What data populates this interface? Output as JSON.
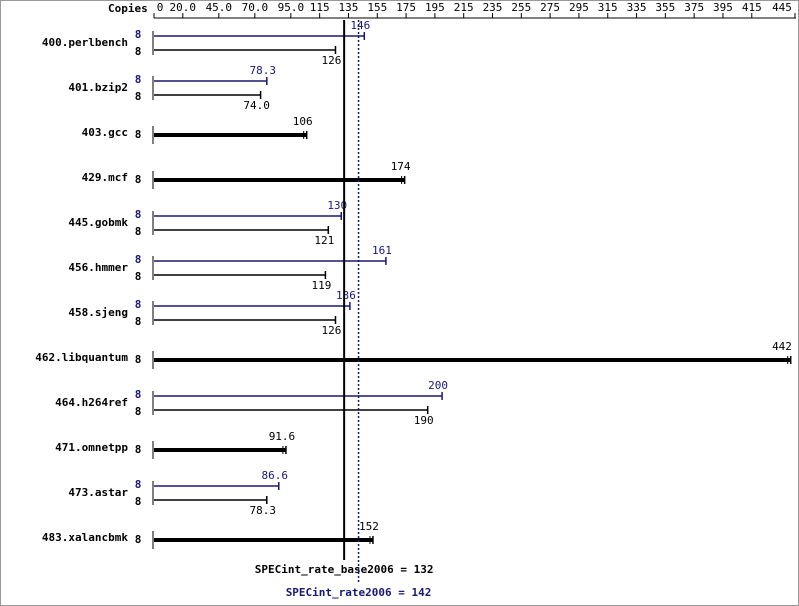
{
  "chart_data": {
    "type": "bar",
    "orientation": "horizontal",
    "x_axis_label": "Copies",
    "categories": [
      "400.perlbench",
      "401.bzip2",
      "403.gcc",
      "429.mcf",
      "445.gobmk",
      "456.hmmer",
      "458.sjeng",
      "462.libquantum",
      "464.h264ref",
      "471.omnetpp",
      "473.astar",
      "483.xalancbmk"
    ],
    "series": [
      {
        "color": "#000000",
        "copies": [
          8,
          8,
          8,
          8,
          8,
          8,
          8,
          8,
          8,
          8,
          8,
          8
        ],
        "values": [
          126,
          74.0,
          106,
          174,
          121,
          119,
          126,
          442,
          190,
          91.6,
          78.3,
          152
        ],
        "value_labels": [
          "126",
          "74.0",
          "106",
          "174",
          "121",
          "119",
          "126",
          "442",
          "190",
          "91.6",
          "78.3",
          "152"
        ]
      },
      {
        "color": "#191970",
        "copies": [
          8,
          8,
          null,
          null,
          8,
          8,
          8,
          null,
          8,
          null,
          8,
          null
        ],
        "values": [
          146,
          78.3,
          null,
          null,
          130,
          161,
          136,
          null,
          200,
          null,
          86.6,
          null
        ],
        "value_labels": [
          "146",
          "78.3",
          null,
          null,
          "130",
          "161",
          "136",
          null,
          "200",
          null,
          "86.6",
          null
        ]
      }
    ],
    "xlim": [
      0,
      445
    ],
    "xticks": [
      0,
      {
        "value": 20,
        "label": "20.0"
      },
      {
        "value": 45,
        "label": "45.0"
      },
      {
        "value": 70,
        "label": "70.0"
      },
      {
        "value": 95,
        "label": "95.0"
      },
      115,
      135,
      155,
      175,
      195,
      215,
      235,
      255,
      275,
      295,
      315,
      335,
      355,
      375,
      395,
      415,
      445
    ],
    "reference_lines": [
      {
        "label": "SPECint_rate_base2006 = 132",
        "value": 132,
        "color": "#000000",
        "style": "solid"
      },
      {
        "label": "SPECint_rate2006 = 142",
        "value": 142,
        "color": "#191970",
        "style": "dotted"
      }
    ]
  }
}
